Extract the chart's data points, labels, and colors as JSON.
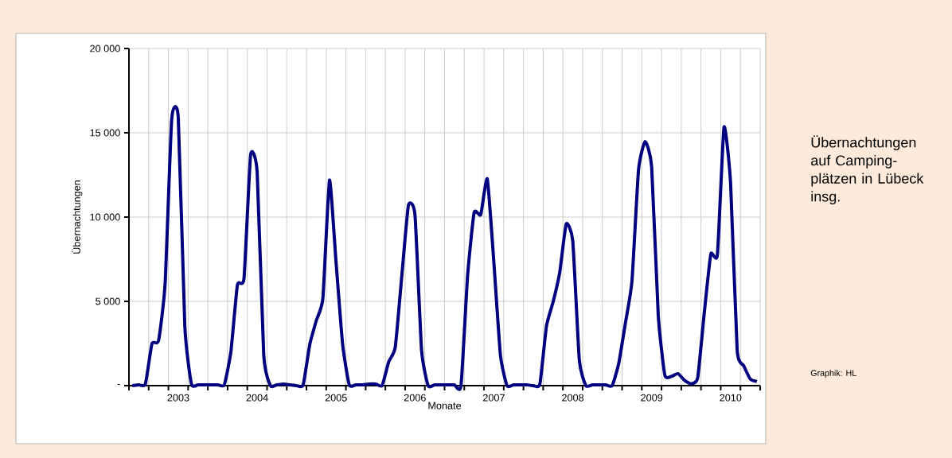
{
  "chart_data": {
    "type": "line",
    "title": "Übernachtungen auf Camping-plätzen in Lübeck insg.",
    "xlabel": "Monate",
    "ylabel": "Übernachtungen",
    "annotations": [
      "Graphik: HL"
    ],
    "categories": [
      null,
      null,
      null,
      null,
      null,
      null,
      null,
      "2003",
      null,
      null,
      null,
      null,
      null,
      null,
      null,
      null,
      null,
      null,
      null,
      "2004",
      null,
      null,
      null,
      null,
      null,
      null,
      null,
      null,
      null,
      null,
      null,
      "2005",
      null,
      null,
      null,
      null,
      null,
      null,
      null,
      null,
      null,
      null,
      null,
      "2006",
      null,
      null,
      null,
      null,
      null,
      null,
      null,
      null,
      null,
      null,
      null,
      "2007",
      null,
      null,
      null,
      null,
      null,
      null,
      null,
      null,
      null,
      null,
      null,
      "2008",
      null,
      null,
      null,
      null,
      null,
      null,
      null,
      null,
      null,
      null,
      null,
      "2009",
      null,
      null,
      null,
      null,
      null,
      null,
      null,
      null,
      null,
      null,
      null,
      "2010",
      null,
      null,
      null,
      null
    ],
    "values": [
      0,
      50,
      100,
      2490,
      2670,
      6050,
      15800,
      15900,
      3500,
      100,
      50,
      50,
      50,
      50,
      50,
      2000,
      5980,
      6370,
      13680,
      12660,
      1800,
      0,
      50,
      100,
      50,
      0,
      50,
      2440,
      3870,
      5200,
      12190,
      7310,
      2440,
      50,
      50,
      50,
      100,
      100,
      0,
      1410,
      2280,
      6520,
      10690,
      10140,
      2120,
      0,
      50,
      50,
      50,
      50,
      0,
      6500,
      10270,
      10140,
      12260,
      7310,
      1800,
      0,
      50,
      50,
      50,
      0,
      100,
      3540,
      4950,
      6680,
      9590,
      8570,
      1490,
      0,
      50,
      50,
      50,
      0,
      1340,
      3700,
      6200,
      12800,
      14480,
      12970,
      4170,
      630,
      550,
      710,
      310,
      110,
      470,
      4320,
      7810,
      7780,
      15330,
      12030,
      2120,
      1180,
      390,
      240
    ],
    "color": "#000080",
    "line_style": "solid",
    "marker": "none",
    "ylim": [
      0,
      20000
    ],
    "yticks": [
      {
        "value": 0,
        "label": "-"
      },
      {
        "value": 5000,
        "label": "5 000"
      },
      {
        "value": 10000,
        "label": "10 000"
      },
      {
        "value": 15000,
        "label": "15 000"
      },
      {
        "value": 20000,
        "label": "20 000"
      }
    ],
    "grid": true
  }
}
